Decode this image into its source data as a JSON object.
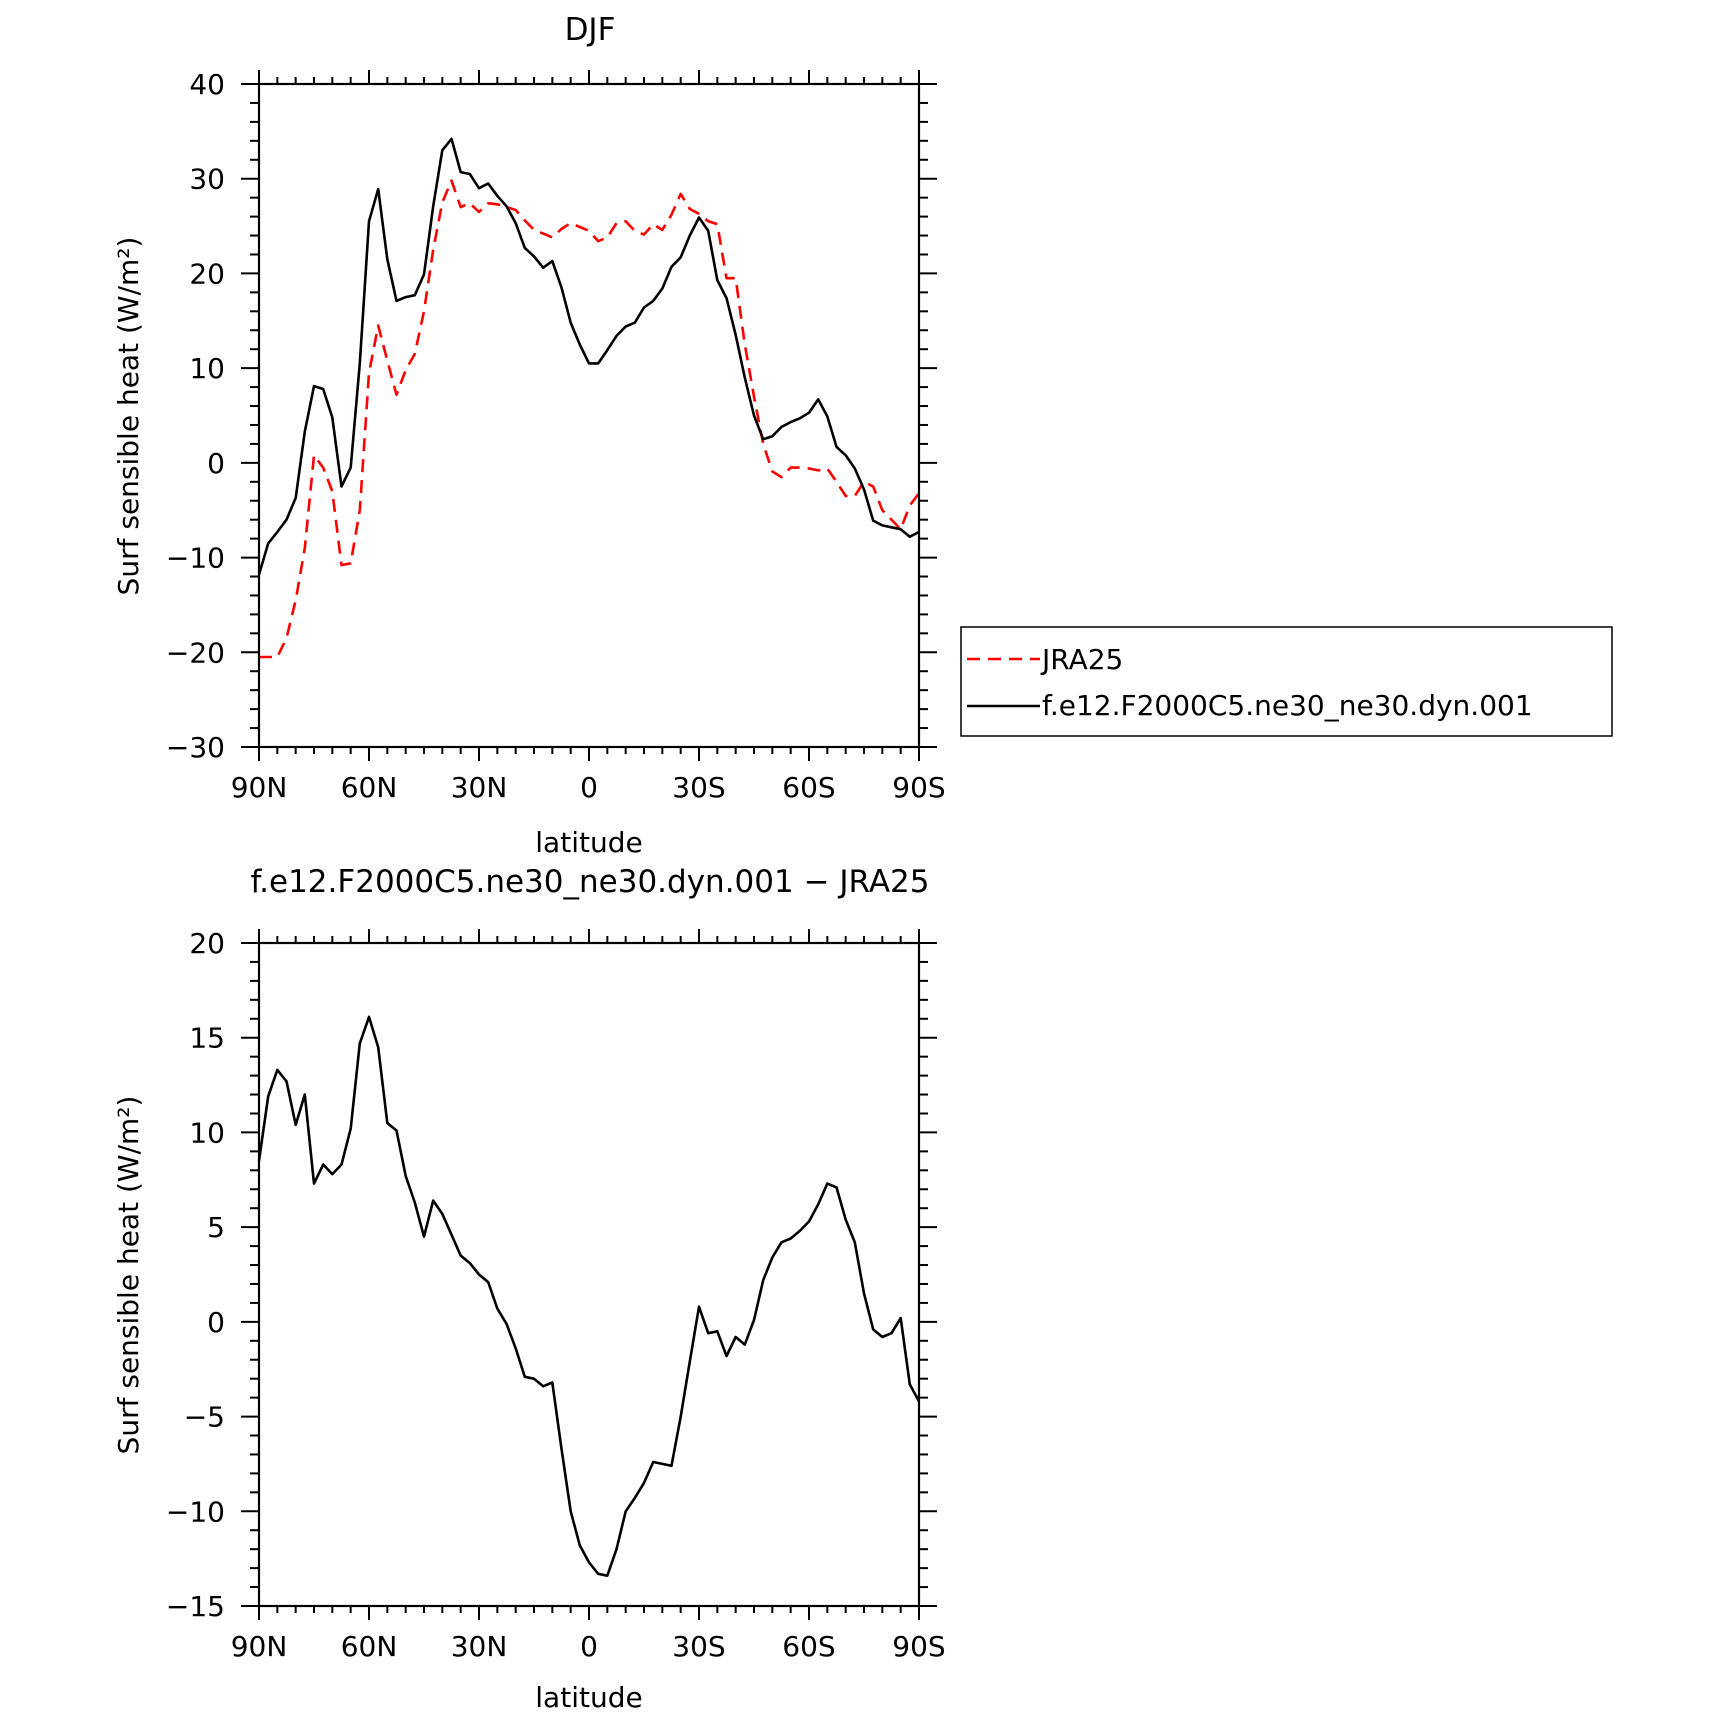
{
  "chart_data": [
    {
      "type": "line",
      "title": "DJF",
      "xlabel": "latitude",
      "ylabel": "Surf  sensible  heat  (W/m²)",
      "xlim": [
        90,
        -90
      ],
      "ylim": [
        -30,
        40
      ],
      "x_ticks": [
        90,
        60,
        30,
        0,
        -30,
        -60,
        -90
      ],
      "x_ticklabels": [
        "90N",
        "60N",
        "30N",
        "0",
        "30S",
        "60S",
        "90S"
      ],
      "y_ticks": [
        -30,
        -20,
        -10,
        0,
        10,
        20,
        30,
        40
      ],
      "y_ticklabels": [
        "−30",
        "−20",
        "−10",
        "0",
        "10",
        "20",
        "30",
        "40"
      ],
      "series": [
        {
          "name": "JRA25",
          "color": "#ff0000",
          "style": "dashed",
          "x": [
            90,
            87.5,
            85,
            82.5,
            80,
            77.5,
            75,
            72.5,
            70,
            67.5,
            65,
            62.5,
            60,
            57.5,
            55,
            52.5,
            50,
            47.5,
            45,
            42.5,
            40,
            37.5,
            35,
            32.5,
            30,
            27.5,
            25,
            22.5,
            20,
            17.5,
            15,
            12.5,
            10,
            7.5,
            5,
            2.5,
            0,
            -2.5,
            -5,
            -7.5,
            -10,
            -12.5,
            -15,
            -17.5,
            -20,
            -22.5,
            -25,
            -27.5,
            -30,
            -32.5,
            -35,
            -37.5,
            -40,
            -42.5,
            -45,
            -47.5,
            -50,
            -52.5,
            -55,
            -57.5,
            -60,
            -62.5,
            -65,
            -67.5,
            -70,
            -72.5,
            -75,
            -77.5,
            -80,
            -82.5,
            -85,
            -87.5,
            -90
          ],
          "values": [
            -20.5,
            -20.5,
            -20.5,
            -18.5,
            -14.5,
            -9,
            0.8,
            -0.5,
            -3,
            -10.8,
            -10.6,
            -5,
            9.5,
            14.5,
            10.8,
            7.2,
            9.8,
            11.5,
            16,
            22.5,
            27.5,
            29.8,
            27,
            27.4,
            26.5,
            27.4,
            27.3,
            27,
            26.7,
            25.6,
            24.6,
            24.2,
            23.8,
            24.7,
            25.3,
            24.9,
            24.5,
            23.4,
            23.8,
            25.3,
            25.5,
            24.5,
            24.1,
            25.2,
            24.6,
            26.2,
            28.4,
            26.8,
            26.3,
            25.5,
            25.2,
            19.5,
            19.5,
            12.5,
            7,
            2,
            -0.9,
            -1.5,
            -0.5,
            -0.5,
            -0.6,
            -0.8,
            -0.6,
            -2,
            -3.5,
            -3.5,
            -2,
            -2.5,
            -5,
            -6,
            -7,
            -4.5,
            -3.2
          ]
        },
        {
          "name": "f.e12.F2000C5.ne30_ne30.dyn.001",
          "color": "#000000",
          "style": "solid",
          "x": [
            90,
            87.5,
            85,
            82.5,
            80,
            77.5,
            75,
            72.5,
            70,
            67.5,
            65,
            62.5,
            60,
            57.5,
            55,
            52.5,
            50,
            47.5,
            45,
            42.5,
            40,
            37.5,
            35,
            32.5,
            30,
            27.5,
            25,
            22.5,
            20,
            17.5,
            15,
            12.5,
            10,
            7.5,
            5,
            2.5,
            0,
            -2.5,
            -5,
            -7.5,
            -10,
            -12.5,
            -15,
            -17.5,
            -20,
            -22.5,
            -25,
            -27.5,
            -30,
            -32.5,
            -35,
            -37.5,
            -40,
            -42.5,
            -45,
            -47.5,
            -50,
            -52.5,
            -55,
            -57.5,
            -60,
            -62.5,
            -65,
            -67.5,
            -70,
            -72.5,
            -75,
            -77.5,
            -80,
            -82.5,
            -85,
            -87.5,
            -90
          ],
          "values": [
            -11.8,
            -8.5,
            -7.3,
            -6,
            -3.7,
            3.3,
            8.1,
            7.8,
            4.8,
            -2.5,
            -0.5,
            10.5,
            25.5,
            28.9,
            21.5,
            17.1,
            17.5,
            17.7,
            19.9,
            27.1,
            33,
            34.2,
            30.7,
            30.5,
            29,
            29.5,
            28.2,
            27.1,
            25.3,
            22.7,
            21.8,
            20.6,
            21.3,
            18.5,
            14.8,
            12.5,
            10.5,
            10.5,
            11.9,
            13.4,
            14.4,
            14.8,
            16.4,
            17.1,
            18.4,
            20.7,
            21.7,
            24,
            25.9,
            24.5,
            19.3,
            17.4,
            13.5,
            9,
            5,
            2.5,
            2.8,
            3.8,
            4.3,
            4.7,
            5.3,
            6.7,
            4.9,
            1.7,
            0.8,
            -0.6,
            -2.8,
            -6.1,
            -6.6,
            -6.8,
            -7,
            -7.8,
            -7.3
          ]
        }
      ]
    },
    {
      "type": "line",
      "title": "f.e12.F2000C5.ne30_ne30.dyn.001  −  JRA25",
      "xlabel": "latitude",
      "ylabel": "Surf  sensible  heat  (W/m²)",
      "xlim": [
        90,
        -90
      ],
      "ylim": [
        -15,
        20
      ],
      "x_ticks": [
        90,
        60,
        30,
        0,
        -30,
        -60,
        -90
      ],
      "x_ticklabels": [
        "90N",
        "60N",
        "30N",
        "0",
        "30S",
        "60S",
        "90S"
      ],
      "y_ticks": [
        -15,
        -10,
        -5,
        0,
        5,
        10,
        15,
        20
      ],
      "y_ticklabels": [
        "−15",
        "−10",
        "−5",
        "0",
        "5",
        "10",
        "15",
        "20"
      ],
      "series": [
        {
          "color": "#000000",
          "style": "solid",
          "x": [
            90,
            87.5,
            85,
            82.5,
            80,
            77.5,
            75,
            72.5,
            70,
            67.5,
            65,
            62.5,
            60,
            57.5,
            55,
            52.5,
            50,
            47.5,
            45,
            42.5,
            40,
            37.5,
            35,
            32.5,
            30,
            27.5,
            25,
            22.5,
            20,
            17.5,
            15,
            12.5,
            10,
            7.5,
            5,
            2.5,
            0,
            -2.5,
            -5,
            -7.5,
            -10,
            -12.5,
            -15,
            -17.5,
            -20,
            -22.5,
            -25,
            -27.5,
            -30,
            -32.5,
            -35,
            -37.5,
            -40,
            -42.5,
            -45,
            -47.5,
            -50,
            -52.5,
            -55,
            -57.5,
            -60,
            -62.5,
            -65,
            -67.5,
            -70,
            -72.5,
            -75,
            -77.5,
            -80,
            -82.5,
            -85,
            -87.5,
            -90
          ],
          "values": [
            8.5,
            11.9,
            13.3,
            12.7,
            10.4,
            12,
            7.3,
            8.3,
            7.8,
            8.3,
            10.2,
            14.7,
            16.1,
            14.5,
            10.5,
            10.1,
            7.7,
            6.3,
            4.5,
            6.4,
            5.7,
            4.6,
            3.5,
            3.1,
            2.5,
            2.1,
            0.7,
            -0.1,
            -1.4,
            -2.9,
            -3,
            -3.4,
            -3.2,
            -6.7,
            -10,
            -11.8,
            -12.7,
            -13.3,
            -13.4,
            -12,
            -10,
            -9.3,
            -8.5,
            -7.4,
            -7.5,
            -7.6,
            -5,
            -2.1,
            0.8,
            -0.6,
            -0.5,
            -1.8,
            -0.8,
            -1.2,
            0.1,
            2.2,
            3.4,
            4.2,
            4.4,
            4.8,
            5.3,
            6.2,
            7.3,
            7.1,
            5.4,
            4.2,
            1.5,
            -0.4,
            -0.8,
            -0.6,
            0.2,
            -3.3,
            -4.2
          ]
        }
      ]
    }
  ]
}
